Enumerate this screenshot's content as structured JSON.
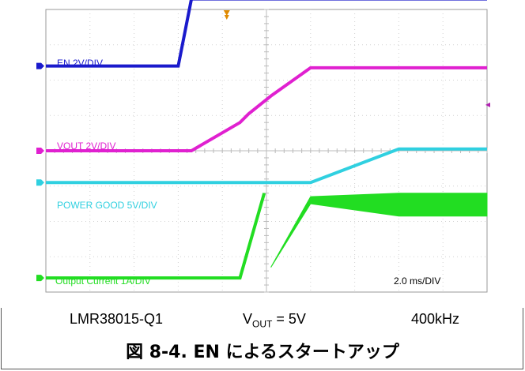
{
  "chart_data": {
    "type": "line",
    "title": "",
    "x_unit_text": "2.0 ms/DIV",
    "x_divisions": 10,
    "y_divisions": 8,
    "grid": true,
    "x": [
      0,
      1.5,
      3.0,
      3.3,
      4.4,
      4.6,
      5.1,
      6.0,
      8.0,
      10.0
    ],
    "series": [
      {
        "name": "EN 2V/DIV",
        "label": "EN 2V/DIV",
        "color": "#1a1acc",
        "ground_div": 2.4,
        "values_div": [
          0,
          0,
          0,
          1.9,
          1.9,
          1.9,
          1.9,
          1.9,
          1.9,
          1.9
        ]
      },
      {
        "name": "VOUT 2V/DIV",
        "label": "VOUT  2V/DIV",
        "color": "#e020d0",
        "ground_div": 0.0,
        "values_div": [
          0,
          0,
          0,
          0,
          0.8,
          1.05,
          1.55,
          2.35,
          2.35,
          2.35
        ]
      },
      {
        "name": "POWER GOOD 5V/DIV",
        "label": "POWER GOOD  5V/DIV",
        "color": "#30d0e0",
        "ground_div": -0.9,
        "values_div": [
          0,
          0,
          0,
          0,
          0,
          0,
          0,
          0,
          0.95,
          0.95
        ]
      },
      {
        "name": "Output Current 1A/DIV",
        "label": "Output Current  1A/DIV",
        "color": "#22dd22",
        "ground_div": -3.6,
        "values_div": [
          0,
          0,
          0,
          0,
          0,
          0,
          0.3,
          2.3,
          2.1,
          2.1
        ],
        "envelope_top_div": [
          0,
          0,
          0,
          0,
          0,
          0,
          0.3,
          2.3,
          2.4,
          2.4
        ],
        "envelope_bottom_div": [
          0,
          0,
          0,
          0,
          0,
          0,
          0.3,
          2.1,
          1.75,
          1.75
        ],
        "waveform_points": [
          [
            0,
            0
          ],
          [
            4.4,
            0
          ],
          [
            4.95,
            2.4
          ],
          [
            5.3,
            2.05
          ],
          [
            6.0,
            2.25
          ],
          [
            7.2,
            2.4
          ],
          [
            7.4,
            1.75
          ],
          [
            10.0,
            1.75
          ]
        ]
      }
    ],
    "markers": {
      "trigger_marker_color": "#e08a00",
      "channel_ground_markers": [
        "1",
        "3",
        "2",
        "4"
      ]
    }
  },
  "caption": {
    "part": "LMR38015-Q1",
    "vout_prefix": "V",
    "vout_sub": "OUT",
    "vout_suffix": " = 5V",
    "freq": "400kHz",
    "figure_title": "図 8-4. EN によるスタートアップ"
  }
}
